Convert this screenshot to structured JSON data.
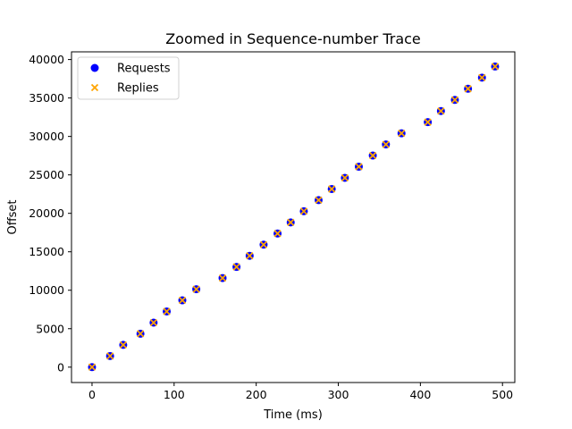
{
  "chart_data": {
    "type": "scatter",
    "title": "Zoomed in Sequence-number Trace",
    "xlabel": "Time (ms)",
    "ylabel": "Offset",
    "xlim": [
      -25,
      515
    ],
    "ylim": [
      -2000,
      41000
    ],
    "xticks": [
      0,
      100,
      200,
      300,
      400,
      500
    ],
    "yticks": [
      0,
      5000,
      10000,
      15000,
      20000,
      25000,
      30000,
      35000,
      40000
    ],
    "grid": false,
    "legend_position": "upper-left",
    "series": [
      {
        "name": "Requests",
        "marker": "circle",
        "color": "#0000ff",
        "points": [
          [
            0,
            0
          ],
          [
            22,
            1448
          ],
          [
            38,
            2896
          ],
          [
            59,
            4344
          ],
          [
            75,
            5792
          ],
          [
            91,
            7240
          ],
          [
            110,
            8688
          ],
          [
            127,
            10136
          ],
          [
            159,
            11584
          ],
          [
            176,
            13032
          ],
          [
            192,
            14480
          ],
          [
            209,
            15928
          ],
          [
            226,
            17376
          ],
          [
            242,
            18824
          ],
          [
            258,
            20272
          ],
          [
            276,
            21720
          ],
          [
            292,
            23168
          ],
          [
            308,
            24616
          ],
          [
            325,
            26064
          ],
          [
            342,
            27512
          ],
          [
            358,
            28960
          ],
          [
            377,
            30408
          ],
          [
            409,
            31856
          ],
          [
            425,
            33304
          ],
          [
            442,
            34752
          ],
          [
            458,
            36200
          ],
          [
            475,
            37648
          ],
          [
            491,
            39096
          ]
        ]
      },
      {
        "name": "Replies",
        "marker": "x",
        "color": "#ffa500",
        "points": [
          [
            0,
            0
          ],
          [
            22,
            1448
          ],
          [
            38,
            2896
          ],
          [
            59,
            4344
          ],
          [
            75,
            5792
          ],
          [
            91,
            7240
          ],
          [
            110,
            8688
          ],
          [
            127,
            10136
          ],
          [
            159,
            11584
          ],
          [
            176,
            13032
          ],
          [
            192,
            14480
          ],
          [
            209,
            15928
          ],
          [
            226,
            17376
          ],
          [
            242,
            18824
          ],
          [
            258,
            20272
          ],
          [
            276,
            21720
          ],
          [
            292,
            23168
          ],
          [
            308,
            24616
          ],
          [
            325,
            26064
          ],
          [
            342,
            27512
          ],
          [
            358,
            28960
          ],
          [
            377,
            30408
          ],
          [
            409,
            31856
          ],
          [
            425,
            33304
          ],
          [
            442,
            34752
          ],
          [
            458,
            36200
          ],
          [
            475,
            37648
          ],
          [
            491,
            39096
          ]
        ]
      }
    ]
  }
}
